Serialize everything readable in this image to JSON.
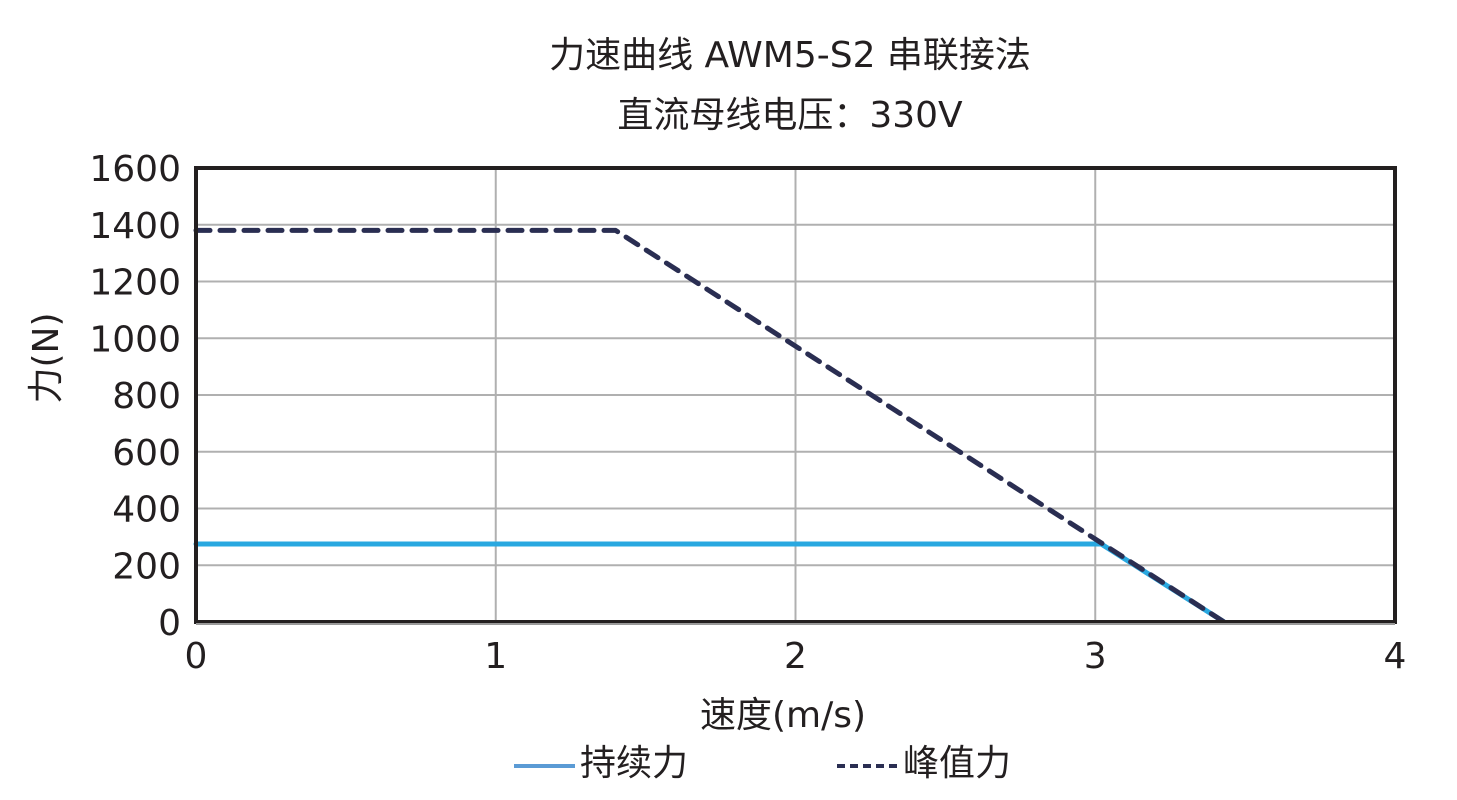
{
  "chart_data": {
    "type": "line",
    "title": "力速曲线 AWM5-S2 串联接法",
    "subtitle": "直流母线电压：330V",
    "xlabel": "速度(m/s)",
    "ylabel": "力(N)",
    "xlim": [
      0,
      4
    ],
    "ylim": [
      0,
      1600
    ],
    "xticks": [
      "0",
      "1",
      "2",
      "3",
      "4"
    ],
    "yticks": [
      "0",
      "200",
      "400",
      "600",
      "800",
      "1000",
      "1200",
      "1400",
      "1600"
    ],
    "grid": true,
    "legend_position": "bottom",
    "series": [
      {
        "name": "持续力",
        "style": "solid",
        "color": "#29a8e0",
        "points": [
          [
            0,
            275
          ],
          [
            3.02,
            275
          ],
          [
            3.43,
            0
          ]
        ]
      },
      {
        "name": "峰值力",
        "style": "dashed",
        "color": "#2a2e52",
        "points": [
          [
            0,
            1380
          ],
          [
            1.4,
            1380
          ],
          [
            3.43,
            0
          ]
        ]
      }
    ]
  },
  "legend": {
    "items": [
      {
        "label": "持续力"
      },
      {
        "label": "峰值力"
      }
    ]
  }
}
